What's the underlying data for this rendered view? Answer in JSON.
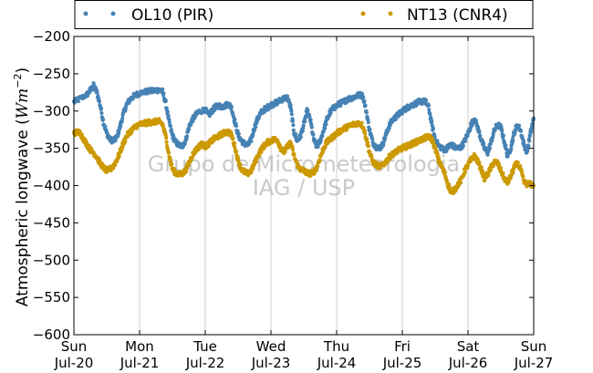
{
  "chart_data": {
    "type": "scatter",
    "ylabel_text": "Atmospheric longwave (",
    "ylabel_math": "Wm",
    "ylabel_exp": "−2",
    "ylabel_close": ")",
    "ylim": [
      -600,
      -200
    ],
    "xlim": [
      0,
      7
    ],
    "yticks": [
      -600,
      -550,
      -500,
      -450,
      -400,
      -350,
      -300,
      -250,
      -200
    ],
    "xticks": [
      {
        "x": 0,
        "day": "Sun",
        "date": "Jul-20"
      },
      {
        "x": 1,
        "day": "Mon",
        "date": "Jul-21"
      },
      {
        "x": 2,
        "day": "Tue",
        "date": "Jul-22"
      },
      {
        "x": 3,
        "day": "Wed",
        "date": "Jul-23"
      },
      {
        "x": 4,
        "day": "Thu",
        "date": "Jul-24"
      },
      {
        "x": 5,
        "day": "Fri",
        "date": "Jul-25"
      },
      {
        "x": 6,
        "day": "Sat",
        "date": "Jul-26"
      },
      {
        "x": 7,
        "day": "Sun",
        "date": "Jul-27"
      }
    ],
    "grid": "vertical",
    "legend_position": "above",
    "watermark": [
      "Grupo de Micrometeorologia",
      "IAG / USP"
    ],
    "series": [
      {
        "name": "OL10 (PIR)",
        "color": "#4682b4",
        "points": [
          [
            0.0,
            -288
          ],
          [
            0.1,
            -283
          ],
          [
            0.2,
            -278
          ],
          [
            0.25,
            -272
          ],
          [
            0.3,
            -266
          ],
          [
            0.35,
            -275
          ],
          [
            0.4,
            -292
          ],
          [
            0.45,
            -315
          ],
          [
            0.5,
            -330
          ],
          [
            0.55,
            -338
          ],
          [
            0.6,
            -340
          ],
          [
            0.65,
            -336
          ],
          [
            0.7,
            -322
          ],
          [
            0.75,
            -305
          ],
          [
            0.8,
            -292
          ],
          [
            0.85,
            -285
          ],
          [
            0.9,
            -281
          ],
          [
            0.95,
            -278
          ],
          [
            1.0,
            -276
          ],
          [
            1.1,
            -274
          ],
          [
            1.2,
            -273
          ],
          [
            1.25,
            -272
          ],
          [
            1.3,
            -272
          ],
          [
            1.35,
            -274
          ],
          [
            1.4,
            -290
          ],
          [
            1.45,
            -315
          ],
          [
            1.5,
            -333
          ],
          [
            1.55,
            -342
          ],
          [
            1.6,
            -346
          ],
          [
            1.65,
            -347
          ],
          [
            1.7,
            -340
          ],
          [
            1.75,
            -322
          ],
          [
            1.8,
            -312
          ],
          [
            1.85,
            -306
          ],
          [
            1.9,
            -301
          ],
          [
            2.0,
            -298
          ],
          [
            2.05,
            -306
          ],
          [
            2.1,
            -300
          ],
          [
            2.15,
            -295
          ],
          [
            2.2,
            -293
          ],
          [
            2.25,
            -294
          ],
          [
            2.3,
            -293
          ],
          [
            2.35,
            -290
          ],
          [
            2.4,
            -296
          ],
          [
            2.45,
            -314
          ],
          [
            2.5,
            -332
          ],
          [
            2.55,
            -340
          ],
          [
            2.6,
            -344
          ],
          [
            2.65,
            -346
          ],
          [
            2.7,
            -338
          ],
          [
            2.75,
            -322
          ],
          [
            2.8,
            -310
          ],
          [
            2.85,
            -302
          ],
          [
            2.9,
            -298
          ],
          [
            2.95,
            -295
          ],
          [
            3.0,
            -292
          ],
          [
            3.05,
            -290
          ],
          [
            3.1,
            -288
          ],
          [
            3.15,
            -285
          ],
          [
            3.2,
            -283
          ],
          [
            3.25,
            -282
          ],
          [
            3.3,
            -295
          ],
          [
            3.35,
            -328
          ],
          [
            3.4,
            -340
          ],
          [
            3.45,
            -334
          ],
          [
            3.5,
            -318
          ],
          [
            3.55,
            -300
          ],
          [
            3.6,
            -312
          ],
          [
            3.65,
            -338
          ],
          [
            3.7,
            -348
          ],
          [
            3.75,
            -340
          ],
          [
            3.8,
            -326
          ],
          [
            3.85,
            -312
          ],
          [
            3.9,
            -302
          ],
          [
            3.95,
            -296
          ],
          [
            4.0,
            -293
          ],
          [
            4.05,
            -290
          ],
          [
            4.1,
            -288
          ],
          [
            4.15,
            -285
          ],
          [
            4.2,
            -283
          ],
          [
            4.25,
            -282
          ],
          [
            4.3,
            -280
          ],
          [
            4.35,
            -278
          ],
          [
            4.4,
            -280
          ],
          [
            4.45,
            -300
          ],
          [
            4.5,
            -325
          ],
          [
            4.55,
            -342
          ],
          [
            4.6,
            -348
          ],
          [
            4.65,
            -350
          ],
          [
            4.7,
            -345
          ],
          [
            4.75,
            -332
          ],
          [
            4.8,
            -320
          ],
          [
            4.85,
            -312
          ],
          [
            4.9,
            -308
          ],
          [
            4.95,
            -304
          ],
          [
            5.0,
            -300
          ],
          [
            5.05,
            -297
          ],
          [
            5.1,
            -294
          ],
          [
            5.15,
            -292
          ],
          [
            5.2,
            -290
          ],
          [
            5.25,
            -288
          ],
          [
            5.3,
            -287
          ],
          [
            5.35,
            -287
          ],
          [
            5.4,
            -295
          ],
          [
            5.45,
            -318
          ],
          [
            5.5,
            -338
          ],
          [
            5.55,
            -346
          ],
          [
            5.6,
            -350
          ],
          [
            5.65,
            -352
          ],
          [
            5.7,
            -348
          ],
          [
            5.75,
            -345
          ],
          [
            5.8,
            -349
          ],
          [
            5.85,
            -350
          ],
          [
            5.9,
            -348
          ],
          [
            5.95,
            -340
          ],
          [
            6.0,
            -330
          ],
          [
            6.05,
            -318
          ],
          [
            6.1,
            -310
          ],
          [
            6.15,
            -323
          ],
          [
            6.2,
            -338
          ],
          [
            6.25,
            -350
          ],
          [
            6.3,
            -356
          ],
          [
            6.35,
            -342
          ],
          [
            6.4,
            -326
          ],
          [
            6.45,
            -318
          ],
          [
            6.5,
            -322
          ],
          [
            6.55,
            -340
          ],
          [
            6.6,
            -360
          ],
          [
            6.65,
            -350
          ],
          [
            6.7,
            -330
          ],
          [
            6.75,
            -318
          ],
          [
            6.8,
            -326
          ],
          [
            6.85,
            -345
          ],
          [
            6.9,
            -355
          ],
          [
            6.95,
            -330
          ],
          [
            7.0,
            -310
          ]
        ]
      },
      {
        "name": "NT13 (CNR4)",
        "color": "#cc9900",
        "points": [
          [
            0.0,
            -330
          ],
          [
            0.05,
            -328
          ],
          [
            0.1,
            -330
          ],
          [
            0.15,
            -338
          ],
          [
            0.2,
            -345
          ],
          [
            0.25,
            -352
          ],
          [
            0.3,
            -356
          ],
          [
            0.35,
            -362
          ],
          [
            0.4,
            -370
          ],
          [
            0.45,
            -376
          ],
          [
            0.5,
            -380
          ],
          [
            0.55,
            -378
          ],
          [
            0.6,
            -374
          ],
          [
            0.65,
            -366
          ],
          [
            0.7,
            -356
          ],
          [
            0.75,
            -344
          ],
          [
            0.8,
            -334
          ],
          [
            0.85,
            -328
          ],
          [
            0.9,
            -324
          ],
          [
            0.95,
            -320
          ],
          [
            1.0,
            -318
          ],
          [
            1.05,
            -317
          ],
          [
            1.1,
            -316
          ],
          [
            1.15,
            -315
          ],
          [
            1.2,
            -315
          ],
          [
            1.25,
            -314
          ],
          [
            1.3,
            -314
          ],
          [
            1.35,
            -318
          ],
          [
            1.4,
            -335
          ],
          [
            1.45,
            -360
          ],
          [
            1.5,
            -378
          ],
          [
            1.55,
            -383
          ],
          [
            1.6,
            -385
          ],
          [
            1.65,
            -384
          ],
          [
            1.7,
            -380
          ],
          [
            1.75,
            -370
          ],
          [
            1.8,
            -360
          ],
          [
            1.85,
            -353
          ],
          [
            1.9,
            -348
          ],
          [
            1.95,
            -344
          ],
          [
            2.0,
            -348
          ],
          [
            2.05,
            -344
          ],
          [
            2.1,
            -340
          ],
          [
            2.15,
            -336
          ],
          [
            2.2,
            -334
          ],
          [
            2.25,
            -331
          ],
          [
            2.3,
            -329
          ],
          [
            2.35,
            -328
          ],
          [
            2.4,
            -332
          ],
          [
            2.45,
            -348
          ],
          [
            2.5,
            -366
          ],
          [
            2.55,
            -378
          ],
          [
            2.6,
            -382
          ],
          [
            2.65,
            -384
          ],
          [
            2.7,
            -380
          ],
          [
            2.75,
            -370
          ],
          [
            2.8,
            -360
          ],
          [
            2.85,
            -352
          ],
          [
            2.9,
            -346
          ],
          [
            2.95,
            -342
          ],
          [
            3.0,
            -340
          ],
          [
            3.05,
            -338
          ],
          [
            3.1,
            -339
          ],
          [
            3.15,
            -350
          ],
          [
            3.2,
            -355
          ],
          [
            3.25,
            -348
          ],
          [
            3.3,
            -342
          ],
          [
            3.35,
            -360
          ],
          [
            3.4,
            -372
          ],
          [
            3.45,
            -378
          ],
          [
            3.5,
            -380
          ],
          [
            3.55,
            -383
          ],
          [
            3.6,
            -384
          ],
          [
            3.65,
            -382
          ],
          [
            3.7,
            -375
          ],
          [
            3.75,
            -362
          ],
          [
            3.8,
            -350
          ],
          [
            3.85,
            -342
          ],
          [
            3.9,
            -338
          ],
          [
            3.95,
            -334
          ],
          [
            4.0,
            -330
          ],
          [
            4.05,
            -327
          ],
          [
            4.1,
            -324
          ],
          [
            4.15,
            -322
          ],
          [
            4.2,
            -320
          ],
          [
            4.25,
            -318
          ],
          [
            4.3,
            -317
          ],
          [
            4.35,
            -316
          ],
          [
            4.4,
            -320
          ],
          [
            4.45,
            -336
          ],
          [
            4.5,
            -355
          ],
          [
            4.55,
            -368
          ],
          [
            4.6,
            -372
          ],
          [
            4.65,
            -374
          ],
          [
            4.7,
            -373
          ],
          [
            4.75,
            -368
          ],
          [
            4.8,
            -362
          ],
          [
            4.85,
            -358
          ],
          [
            4.9,
            -355
          ],
          [
            4.95,
            -352
          ],
          [
            5.0,
            -350
          ],
          [
            5.05,
            -348
          ],
          [
            5.1,
            -346
          ],
          [
            5.15,
            -344
          ],
          [
            5.2,
            -342
          ],
          [
            5.25,
            -340
          ],
          [
            5.3,
            -338
          ],
          [
            5.35,
            -336
          ],
          [
            5.4,
            -334
          ],
          [
            5.45,
            -338
          ],
          [
            5.5,
            -350
          ],
          [
            5.55,
            -365
          ],
          [
            5.6,
            -375
          ],
          [
            5.65,
            -385
          ],
          [
            5.7,
            -400
          ],
          [
            5.75,
            -410
          ],
          [
            5.8,
            -405
          ],
          [
            5.85,
            -398
          ],
          [
            5.9,
            -392
          ],
          [
            5.95,
            -380
          ],
          [
            6.0,
            -372
          ],
          [
            6.05,
            -365
          ],
          [
            6.1,
            -360
          ],
          [
            6.15,
            -368
          ],
          [
            6.2,
            -378
          ],
          [
            6.25,
            -390
          ],
          [
            6.3,
            -385
          ],
          [
            6.35,
            -376
          ],
          [
            6.4,
            -368
          ],
          [
            6.45,
            -370
          ],
          [
            6.5,
            -380
          ],
          [
            6.55,
            -390
          ],
          [
            6.6,
            -396
          ],
          [
            6.65,
            -388
          ],
          [
            6.7,
            -376
          ],
          [
            6.75,
            -370
          ],
          [
            6.8,
            -378
          ],
          [
            6.85,
            -395
          ],
          [
            6.9,
            -398
          ],
          [
            6.95,
            -398
          ],
          [
            7.0,
            -400
          ]
        ]
      }
    ]
  }
}
